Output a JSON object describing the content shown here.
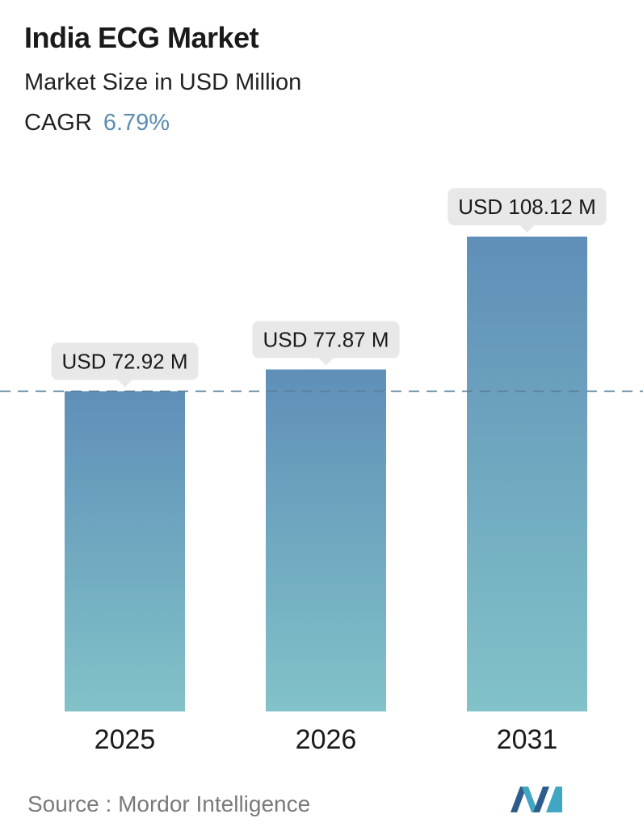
{
  "title": "India ECG Market",
  "subtitle": "Market Size in USD Million",
  "cagr": {
    "label": "CAGR",
    "value": "6.79%"
  },
  "source": {
    "label": "Source :",
    "name": "Mordor Intelligence"
  },
  "colors": {
    "bar_top": "#5f8fb8",
    "bar_bottom": "#82c2c8",
    "callout_bg": "#e8e8e8",
    "dashed_line": "#5b7f99",
    "accent": "#5b8db3"
  },
  "chart_data": {
    "type": "bar",
    "categories": [
      "2025",
      "2026",
      "2031"
    ],
    "values": [
      72.92,
      77.87,
      108.12
    ],
    "data_labels": [
      "USD 72.92 M",
      "USD 77.87 M",
      "USD 108.12 M"
    ],
    "title": "India ECG Market",
    "subtitle": "Market Size in USD Million",
    "reference_line": 72.92,
    "grid": false,
    "legend": "none"
  }
}
